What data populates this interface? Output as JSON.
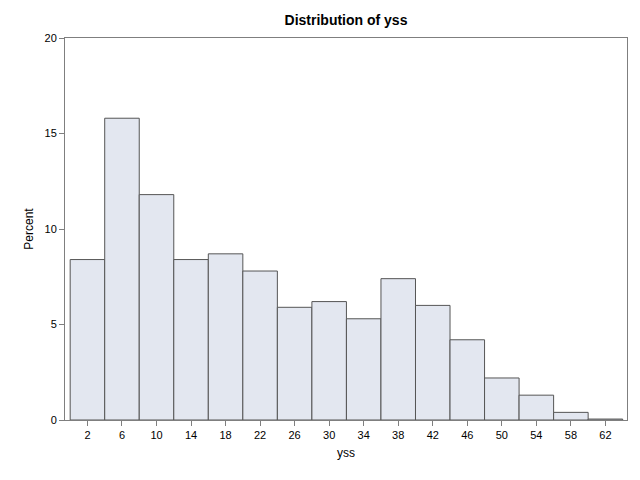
{
  "chart_data": {
    "type": "histogram",
    "title": "Distribution of yss",
    "x_label": "yss",
    "y_label": "Percent",
    "bins": [
      0,
      4,
      8,
      12,
      16,
      20,
      24,
      28,
      32,
      36,
      40,
      44,
      48,
      52,
      56,
      60,
      64
    ],
    "values": [
      8.4,
      15.8,
      11.8,
      8.4,
      8.7,
      7.8,
      5.9,
      6.2,
      5.3,
      7.4,
      6.0,
      4.2,
      2.2,
      1.3,
      0.4,
      0.05
    ],
    "color": "#e3e7f0",
    "xlim": [
      -0.6,
      64.5
    ],
    "xticks": [
      2,
      6,
      10,
      14,
      18,
      22,
      26,
      30,
      34,
      38,
      42,
      46,
      50,
      54,
      58,
      62
    ],
    "ylim": [
      0,
      20
    ],
    "yticks": [
      0,
      5,
      10,
      15,
      20
    ],
    "grid": false
  }
}
